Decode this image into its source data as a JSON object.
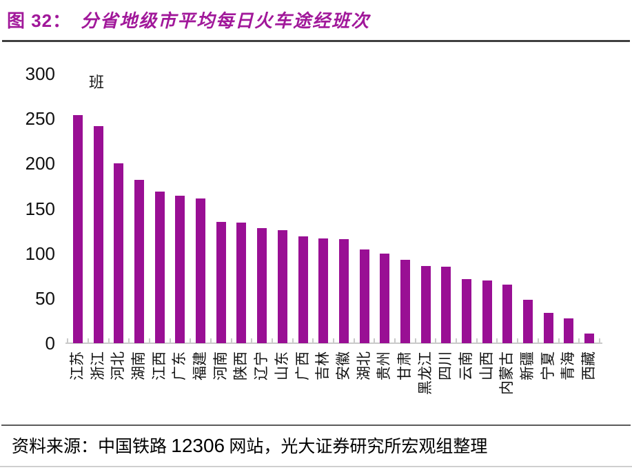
{
  "figure": {
    "label": "图 32：",
    "title": "分省地级市平均每日火车途经班次"
  },
  "source": {
    "prefix": "资料来源：中国铁路 ",
    "number": "12306",
    "suffix": " 网站，光大证券研究所宏观组整理"
  },
  "colors": {
    "title": "#A1189A",
    "bar": "#990F94",
    "axis": "#C9C9C9",
    "rule_dark": "#3F3F3F",
    "rule_mid": "#5A5A5A",
    "rule_light": "#CFCFCF",
    "text": "#000000"
  },
  "chart_data": {
    "type": "bar",
    "title": "分省地级市平均每日火车途经班次",
    "unit_label": "班",
    "xlabel": "",
    "ylabel": "班",
    "categories": [
      "江苏",
      "浙江",
      "河北",
      "湖南",
      "江西",
      "广东",
      "福建",
      "河南",
      "陕西",
      "辽宁",
      "山东",
      "广西",
      "吉林",
      "安徽",
      "湖北",
      "贵州",
      "甘肃",
      "黑龙江",
      "四川",
      "云南",
      "山西",
      "内蒙古",
      "新疆",
      "宁夏",
      "青海",
      "西藏"
    ],
    "values": [
      254,
      242,
      200,
      182,
      169,
      164,
      161,
      135,
      134,
      128,
      126,
      119,
      117,
      116,
      104,
      100,
      93,
      86,
      85,
      71,
      70,
      65,
      48,
      34,
      28,
      11
    ],
    "ylim": [
      0,
      300
    ],
    "yticks": [
      0,
      50,
      100,
      150,
      200,
      250,
      300
    ],
    "ytick_step": 50,
    "grid": false,
    "legend": "none",
    "bar_color": "#990F94"
  }
}
